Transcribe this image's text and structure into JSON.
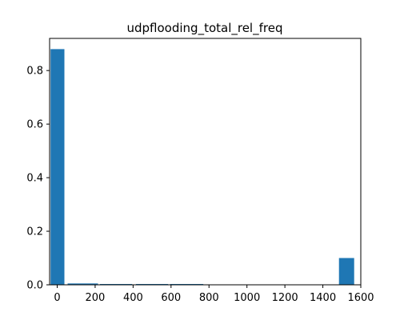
{
  "chart_data": {
    "type": "bar",
    "title": "udpflooding_total_rel_freq",
    "xlabel": "",
    "ylabel": "",
    "color": "#1f77b4",
    "xlim": [
      -40,
      1600
    ],
    "ylim": [
      0,
      0.92
    ],
    "grid": false,
    "x_ticks": [
      0,
      200,
      400,
      600,
      800,
      1000,
      1200,
      1400,
      1600
    ],
    "x_tick_labels": [
      "0",
      "200",
      "400",
      "600",
      "800",
      "1000",
      "1200",
      "1400",
      "1600"
    ],
    "y_ticks": [
      0.0,
      0.2,
      0.4,
      0.6,
      0.8
    ],
    "y_tick_labels": [
      "0.0",
      "0.2",
      "0.4",
      "0.6",
      "0.8"
    ],
    "bars": [
      {
        "x0": -35,
        "x1": 38,
        "value": 0.88
      },
      {
        "x0": 55,
        "x1": 215,
        "value": 0.005
      },
      {
        "x0": 225,
        "x1": 395,
        "value": 0.003
      },
      {
        "x0": 415,
        "x1": 585,
        "value": 0.003
      },
      {
        "x0": 595,
        "x1": 770,
        "value": 0.003
      },
      {
        "x0": 1485,
        "x1": 1565,
        "value": 0.1
      }
    ]
  }
}
